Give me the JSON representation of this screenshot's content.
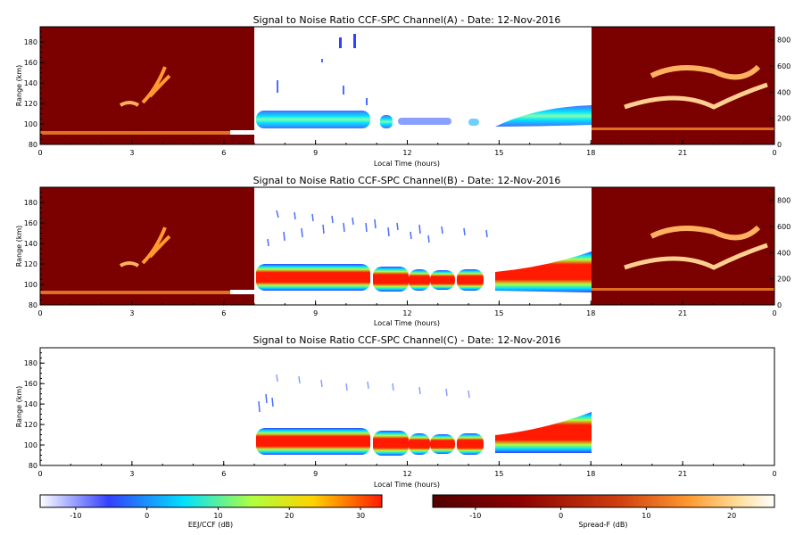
{
  "colors": {
    "ccf_colormap": [
      "#ffffff",
      "#3340ff",
      "#00e0ff",
      "#b0ff40",
      "#ffd200",
      "#ff1a00"
    ],
    "spreadf_colormap": [
      "#520000",
      "#8b0000",
      "#d04010",
      "#ff9a30",
      "#ffe0a0",
      "#ffffff"
    ],
    "spreadf_background": "#7b0000"
  },
  "chart_data": [
    {
      "type": "heatmap",
      "title": "Signal to Noise Ratio CCF-SPC Channel(A) - Date: 12-Nov-2016",
      "xlabel": "Local Time (hours)",
      "ylabel": "Range (km)",
      "xlim": [
        0,
        24
      ],
      "ylim": [
        80,
        195
      ],
      "x_ticks": [
        "0",
        "3",
        "6",
        "9",
        "12",
        "15",
        "18",
        "21",
        "0"
      ],
      "y_ticks": [
        "80",
        "100",
        "120",
        "140",
        "160",
        "180"
      ],
      "right_axis_ticks": [
        "0",
        "200",
        "400",
        "600",
        "800"
      ],
      "ccf_window_hours": [
        7,
        18
      ],
      "spreadf_windows_hours": [
        [
          0,
          7
        ],
        [
          18,
          24
        ]
      ],
      "eej_layer": {
        "center_km": 104,
        "thickness_km": 13,
        "peak_snr_db": 5
      }
    },
    {
      "type": "heatmap",
      "title": "Signal to Noise Ratio CCF-SPC Channel(B) - Date: 12-Nov-2016",
      "xlabel": "Local Time (hours)",
      "ylabel": "Range (km)",
      "xlim": [
        0,
        24
      ],
      "ylim": [
        80,
        195
      ],
      "x_ticks": [
        "0",
        "3",
        "6",
        "9",
        "12",
        "15",
        "18",
        "21",
        "0"
      ],
      "y_ticks": [
        "80",
        "100",
        "120",
        "140",
        "160",
        "180"
      ],
      "right_axis_ticks": [
        "0",
        "200",
        "400",
        "600",
        "800"
      ],
      "ccf_window_hours": [
        7,
        18
      ],
      "spreadf_windows_hours": [
        [
          0,
          7
        ],
        [
          18,
          24
        ]
      ],
      "eej_layer": {
        "center_km": 104,
        "thickness_km": 22,
        "peak_snr_db": 32
      }
    },
    {
      "type": "heatmap",
      "title": "Signal to Noise Ratio CCF-SPC Channel(C) - Date: 12-Nov-2016",
      "xlabel": "Local Time (hours)",
      "ylabel": "Range (km)",
      "xlim": [
        0,
        24
      ],
      "ylim": [
        80,
        195
      ],
      "x_ticks": [
        "0",
        "3",
        "6",
        "9",
        "12",
        "15",
        "18",
        "21",
        "0"
      ],
      "y_ticks": [
        "80",
        "100",
        "120",
        "140",
        "160",
        "180"
      ],
      "ccf_window_hours": [
        7,
        18
      ],
      "eej_layer": {
        "center_km": 104,
        "thickness_km": 22,
        "peak_snr_db": 32
      }
    },
    {
      "type": "colorbar",
      "label": "EEJ/CCF (dB)",
      "range": [
        -15,
        33
      ],
      "ticks": [
        "-10",
        "0",
        "10",
        "20",
        "30"
      ],
      "tick_values": [
        -10,
        0,
        10,
        20,
        30
      ]
    },
    {
      "type": "colorbar",
      "label": "Spread-F (dB)",
      "range": [
        -15,
        25
      ],
      "ticks": [
        "-10",
        "0",
        "10",
        "20"
      ],
      "tick_values": [
        -10,
        0,
        10,
        20
      ]
    }
  ]
}
